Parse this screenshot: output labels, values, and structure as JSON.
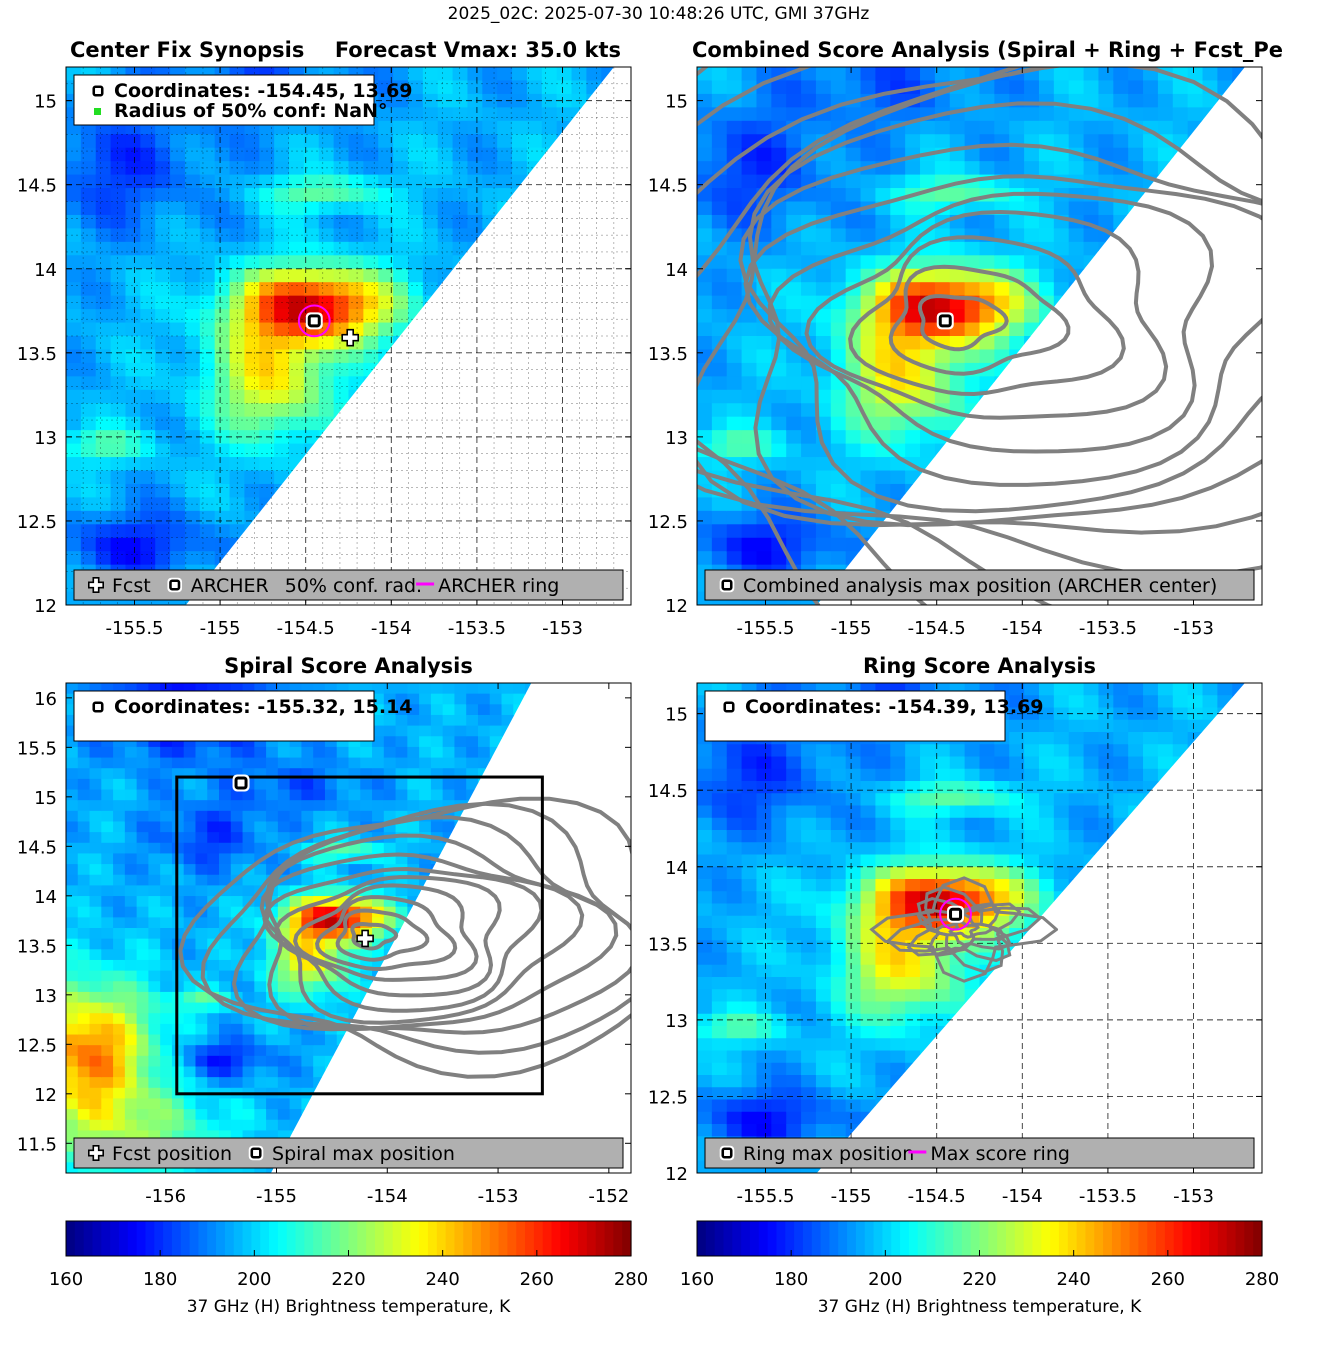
{
  "suptitle": "2025_02C: 2025-07-30 10:48:26 UTC, GMI 37GHz",
  "colors": {
    "fcst_marker": "#ffffff",
    "archer_marker": "#000000",
    "conf_marker": "#22dd22",
    "ring_line": "#ff00ff",
    "contour": "#808080",
    "legend_bg": "#b0b0b0",
    "box": "#000000"
  },
  "chart_data": [
    {
      "type": "heatmap",
      "id": "p1",
      "title": "Center Fix Synopsis",
      "subtitle": "Forecast Vmax: 35.0 kts",
      "xlim": [
        -155.9,
        -152.6
      ],
      "ylim": [
        12,
        15.2
      ],
      "xticks": [
        -155.5,
        -155,
        -154.5,
        -154,
        -153.5,
        -153
      ],
      "xtick_labels": [
        "-155.5",
        "-155",
        "-154.5",
        "-154",
        "-153.5",
        "-153"
      ],
      "yticks": [
        12,
        12.5,
        13,
        13.5,
        14,
        14.5,
        15
      ],
      "ytick_labels": [
        "12",
        "12.5",
        "13",
        "13.5",
        "14",
        "14.5",
        "15"
      ],
      "grid": "dense",
      "swath_edge": [
        [
          -155.2,
          12.0
        ],
        [
          -152.7,
          15.2
        ]
      ],
      "contours": false,
      "info_lines": [
        "Coordinates: -154.45, 13.69",
        "Radius of 50% conf: NaN°"
      ],
      "info_markers": [
        "archer",
        "conf"
      ],
      "archer": [
        -154.45,
        13.69
      ],
      "fcst": [
        -154.24,
        13.59
      ],
      "ring_radius": 0.09,
      "legend": [
        {
          "marker": "fcst",
          "label": "Fcst"
        },
        {
          "marker": "archer",
          "label": "ARCHER"
        },
        {
          "marker": "none",
          "label": "50% conf. rad."
        },
        {
          "marker": "line",
          "label": "ARCHER ring"
        }
      ]
    },
    {
      "type": "heatmap",
      "id": "p2",
      "title": "Combined Score Analysis (Spiral + Ring + Fcst_Pe",
      "xlim": [
        -155.9,
        -152.6
      ],
      "ylim": [
        12,
        15.2
      ],
      "xticks": [
        -155.5,
        -155,
        -154.5,
        -154,
        -153.5,
        -153
      ],
      "xtick_labels": [
        "-155.5",
        "-155",
        "-154.5",
        "-154",
        "-153.5",
        "-153"
      ],
      "yticks": [
        12,
        12.5,
        13,
        13.5,
        14,
        14.5,
        15
      ],
      "ytick_labels": [
        "12",
        "12.5",
        "13",
        "13.5",
        "14",
        "14.5",
        "15"
      ],
      "grid": "none",
      "swath_edge": [
        [
          -155.2,
          12.0
        ],
        [
          -152.7,
          15.2
        ]
      ],
      "contours": "combined",
      "contour_center": [
        -154.45,
        13.69
      ],
      "archer": [
        -154.45,
        13.69
      ],
      "legend": [
        {
          "marker": "archer",
          "label": "Combined analysis max position (ARCHER center)"
        }
      ]
    },
    {
      "type": "heatmap",
      "id": "p3",
      "title": "Spiral Score Analysis",
      "xlim": [
        -156.9,
        -151.8
      ],
      "ylim": [
        11.2,
        16.15
      ],
      "xticks": [
        -156,
        -155,
        -154,
        -153,
        -152
      ],
      "xtick_labels": [
        "-156",
        "-155",
        "-154",
        "-153",
        "-152"
      ],
      "yticks": [
        11.5,
        12,
        12.5,
        13,
        13.5,
        14,
        14.5,
        15,
        15.5,
        16
      ],
      "ytick_labels": [
        "11.5",
        "12",
        "12.5",
        "13",
        "13.5",
        "14",
        "14.5",
        "15",
        "15.5",
        "16"
      ],
      "grid": "none",
      "swath_edge": [
        [
          -155.05,
          11.2
        ],
        [
          -152.7,
          16.15
        ]
      ],
      "contours": "spiral",
      "contour_center": [
        -154.2,
        13.6
      ],
      "info_lines": [
        "Coordinates: -155.32, 15.14"
      ],
      "info_markers": [
        "archer"
      ],
      "box": {
        "x0": -155.9,
        "x1": -152.6,
        "y0": 12.0,
        "y1": 15.2
      },
      "archer": [
        -155.32,
        15.14
      ],
      "fcst": [
        -154.2,
        13.57
      ],
      "legend": [
        {
          "marker": "fcst",
          "label": "Fcst position"
        },
        {
          "marker": "archer",
          "label": "Spiral max position"
        }
      ]
    },
    {
      "type": "heatmap",
      "id": "p4",
      "title": "Ring Score Analysis",
      "xlim": [
        -155.9,
        -152.6
      ],
      "ylim": [
        12,
        15.2
      ],
      "xticks": [
        -155.5,
        -155,
        -154.5,
        -154,
        -153.5,
        -153
      ],
      "xtick_labels": [
        "-155.5",
        "-155",
        "-154.5",
        "-154",
        "-153.5",
        "-153"
      ],
      "yticks": [
        12,
        12.5,
        13,
        13.5,
        14,
        14.5,
        15
      ],
      "ytick_labels": [
        "12",
        "12.5",
        "13",
        "13.5",
        "14",
        "14.5",
        "15"
      ],
      "grid": "sparse",
      "swath_edge": [
        [
          -155.2,
          12.0
        ],
        [
          -152.7,
          15.2
        ]
      ],
      "contours": "ring",
      "contour_center": [
        -154.39,
        13.69
      ],
      "info_lines": [
        "Coordinates: -154.39, 13.69"
      ],
      "info_markers": [
        "archer"
      ],
      "archer": [
        -154.39,
        13.69
      ],
      "ring_radius": 0.09,
      "legend": [
        {
          "marker": "archer",
          "label": "Ring max position"
        },
        {
          "marker": "line",
          "label": "Max score ring"
        }
      ]
    }
  ],
  "colorbars": [
    {
      "id": "cb1",
      "ticks": [
        160,
        180,
        200,
        220,
        240,
        260,
        280
      ],
      "tick_labels": [
        "160",
        "180",
        "200",
        "220",
        "240",
        "260",
        "280"
      ],
      "label": "37 GHz (H) Brightness temperature, K",
      "range": [
        160,
        280
      ]
    },
    {
      "id": "cb2",
      "ticks": [
        160,
        180,
        200,
        220,
        240,
        260,
        280
      ],
      "tick_labels": [
        "160",
        "180",
        "200",
        "220",
        "240",
        "260",
        "280"
      ],
      "label": "37 GHz (H) Brightness temperature, K",
      "range": [
        160,
        280
      ]
    }
  ]
}
